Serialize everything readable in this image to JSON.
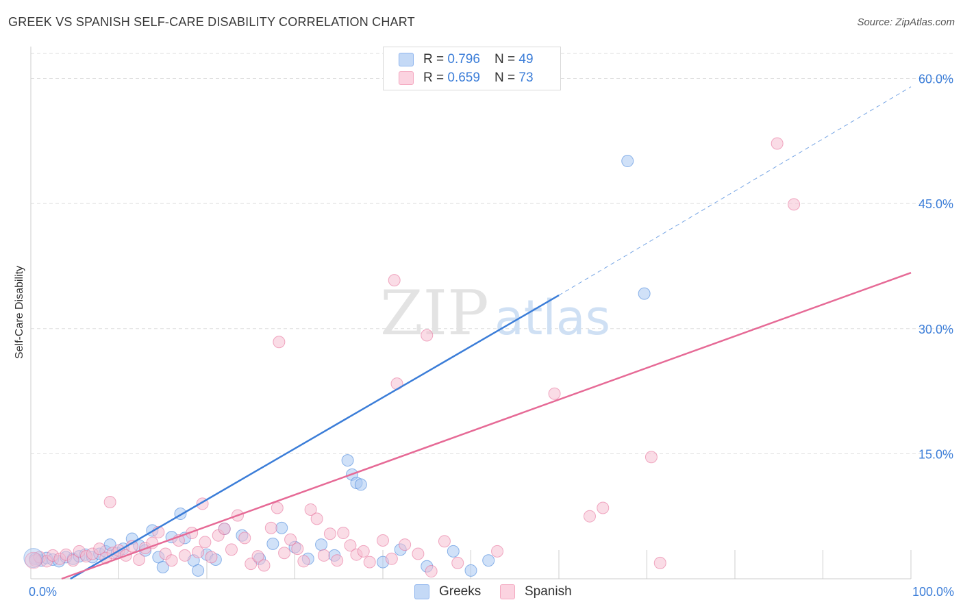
{
  "title": "GREEK VS SPANISH SELF-CARE DISABILITY CORRELATION CHART",
  "source": "Source: ZipAtlas.com",
  "watermark": {
    "zip": "ZIP",
    "atlas": "atlas"
  },
  "legend": {
    "rows": [
      {
        "r_label": "R = ",
        "r_value": "0.796",
        "n_label": "N = ",
        "n_value": "49",
        "color": "#8fb5ee"
      },
      {
        "r_label": "R = ",
        "r_value": "0.659",
        "n_label": "N = ",
        "n_value": "73",
        "color": "#f4a8c0"
      }
    ]
  },
  "bottom_legend": [
    {
      "label": "Greeks",
      "color": "#8fb5ee"
    },
    {
      "label": "Spanish",
      "color": "#f4a8c0"
    }
  ],
  "chart_data": {
    "type": "scatter",
    "title": "GREEK VS SPANISH SELF-CARE DISABILITY CORRELATION CHART",
    "xlabel": "",
    "ylabel": "Self-Care Disability",
    "xlim": [
      0,
      100
    ],
    "ylim": [
      0,
      63
    ],
    "x_tick_labels": [
      "0.0%",
      "100.0%"
    ],
    "y_ticks": [
      15,
      30,
      45,
      60
    ],
    "y_tick_labels": [
      "15.0%",
      "30.0%",
      "45.0%",
      "60.0%"
    ],
    "grid": true,
    "legend_position": "top-center",
    "series": [
      {
        "name": "Greeks",
        "color": "#3b7dd8",
        "fill": "#a9c8f2",
        "r": 0.796,
        "n": 49,
        "trend": {
          "x0": 4.5,
          "y0": 0,
          "x1": 60,
          "y1": 34,
          "dashed_to_x": 100,
          "dashed_to_y": 59
        },
        "points": [
          [
            0.5,
            2.4
          ],
          [
            1.2,
            2.2
          ],
          [
            1.8,
            2.5
          ],
          [
            2.5,
            2.3
          ],
          [
            3.2,
            2.1
          ],
          [
            4.0,
            2.6
          ],
          [
            4.8,
            2.4
          ],
          [
            5.5,
            2.7
          ],
          [
            6.2,
            2.9
          ],
          [
            7.0,
            2.6
          ],
          [
            7.8,
            3.0
          ],
          [
            8.5,
            3.3
          ],
          [
            9.0,
            4.1
          ],
          [
            9.8,
            3.1
          ],
          [
            10.5,
            3.6
          ],
          [
            11.5,
            4.8
          ],
          [
            12.3,
            4.0
          ],
          [
            13.0,
            3.4
          ],
          [
            13.8,
            5.8
          ],
          [
            14.5,
            2.6
          ],
          [
            15.0,
            1.4
          ],
          [
            16.0,
            5.0
          ],
          [
            17.0,
            7.8
          ],
          [
            17.5,
            4.9
          ],
          [
            18.5,
            2.2
          ],
          [
            19.0,
            1.0
          ],
          [
            20.0,
            2.9
          ],
          [
            21.0,
            2.3
          ],
          [
            22.0,
            6.0
          ],
          [
            24.0,
            5.2
          ],
          [
            26.0,
            2.4
          ],
          [
            27.5,
            4.2
          ],
          [
            28.5,
            6.1
          ],
          [
            30.0,
            3.8
          ],
          [
            31.5,
            2.4
          ],
          [
            33.0,
            4.1
          ],
          [
            34.5,
            2.8
          ],
          [
            36.5,
            12.5
          ],
          [
            37.0,
            11.5
          ],
          [
            36.0,
            14.2
          ],
          [
            37.5,
            11.3
          ],
          [
            40.0,
            2.0
          ],
          [
            42.0,
            3.5
          ],
          [
            45.0,
            1.5
          ],
          [
            48.0,
            3.3
          ],
          [
            50.0,
            1.0
          ],
          [
            52.0,
            2.2
          ],
          [
            69.7,
            34.2
          ],
          [
            67.8,
            50.1
          ]
        ]
      },
      {
        "name": "Spanish",
        "color": "#e66a96",
        "fill": "#f6bfd1",
        "r": 0.659,
        "n": 73,
        "trend": {
          "x0": 3.5,
          "y0": 0,
          "x1": 100,
          "y1": 36.7
        },
        "points": [
          [
            0.5,
            2.2
          ],
          [
            1.0,
            2.6
          ],
          [
            1.8,
            2.1
          ],
          [
            2.5,
            2.8
          ],
          [
            3.3,
            2.4
          ],
          [
            4.0,
            2.9
          ],
          [
            4.8,
            2.2
          ],
          [
            5.5,
            3.3
          ],
          [
            6.3,
            2.7
          ],
          [
            7.0,
            3.0
          ],
          [
            7.8,
            3.6
          ],
          [
            8.5,
            2.5
          ],
          [
            9.3,
            3.1
          ],
          [
            10.0,
            3.4
          ],
          [
            10.8,
            2.8
          ],
          [
            11.5,
            3.9
          ],
          [
            12.3,
            2.3
          ],
          [
            13.0,
            3.7
          ],
          [
            13.8,
            4.3
          ],
          [
            14.5,
            5.6
          ],
          [
            15.3,
            3.0
          ],
          [
            16.0,
            2.2
          ],
          [
            16.8,
            4.6
          ],
          [
            17.5,
            2.8
          ],
          [
            18.3,
            5.5
          ],
          [
            19.0,
            3.2
          ],
          [
            19.8,
            4.4
          ],
          [
            20.5,
            2.6
          ],
          [
            21.3,
            5.2
          ],
          [
            22.0,
            6.0
          ],
          [
            22.8,
            3.5
          ],
          [
            23.5,
            7.6
          ],
          [
            24.3,
            4.9
          ],
          [
            25.0,
            1.8
          ],
          [
            25.8,
            2.7
          ],
          [
            26.5,
            1.6
          ],
          [
            27.3,
            6.1
          ],
          [
            28.0,
            8.5
          ],
          [
            28.8,
            3.1
          ],
          [
            29.5,
            4.7
          ],
          [
            30.3,
            3.6
          ],
          [
            31.0,
            2.1
          ],
          [
            31.8,
            8.3
          ],
          [
            32.5,
            7.2
          ],
          [
            33.3,
            2.8
          ],
          [
            34.0,
            5.4
          ],
          [
            34.8,
            2.2
          ],
          [
            35.5,
            5.5
          ],
          [
            36.3,
            4.0
          ],
          [
            37.0,
            2.9
          ],
          [
            37.8,
            3.3
          ],
          [
            38.5,
            2.0
          ],
          [
            40.0,
            4.6
          ],
          [
            41.0,
            2.4
          ],
          [
            42.5,
            4.1
          ],
          [
            44.0,
            3.0
          ],
          [
            45.5,
            0.9
          ],
          [
            47.0,
            4.5
          ],
          [
            48.5,
            1.9
          ],
          [
            53.0,
            3.3
          ],
          [
            9.0,
            9.2
          ],
          [
            19.5,
            9.0
          ],
          [
            28.2,
            28.4
          ],
          [
            41.6,
            23.4
          ],
          [
            41.3,
            35.8
          ],
          [
            45.0,
            29.2
          ],
          [
            59.5,
            22.2
          ],
          [
            63.5,
            7.5
          ],
          [
            65.0,
            8.5
          ],
          [
            70.5,
            14.6
          ],
          [
            71.5,
            1.9
          ],
          [
            84.8,
            52.2
          ],
          [
            86.7,
            44.9
          ]
        ]
      }
    ]
  }
}
